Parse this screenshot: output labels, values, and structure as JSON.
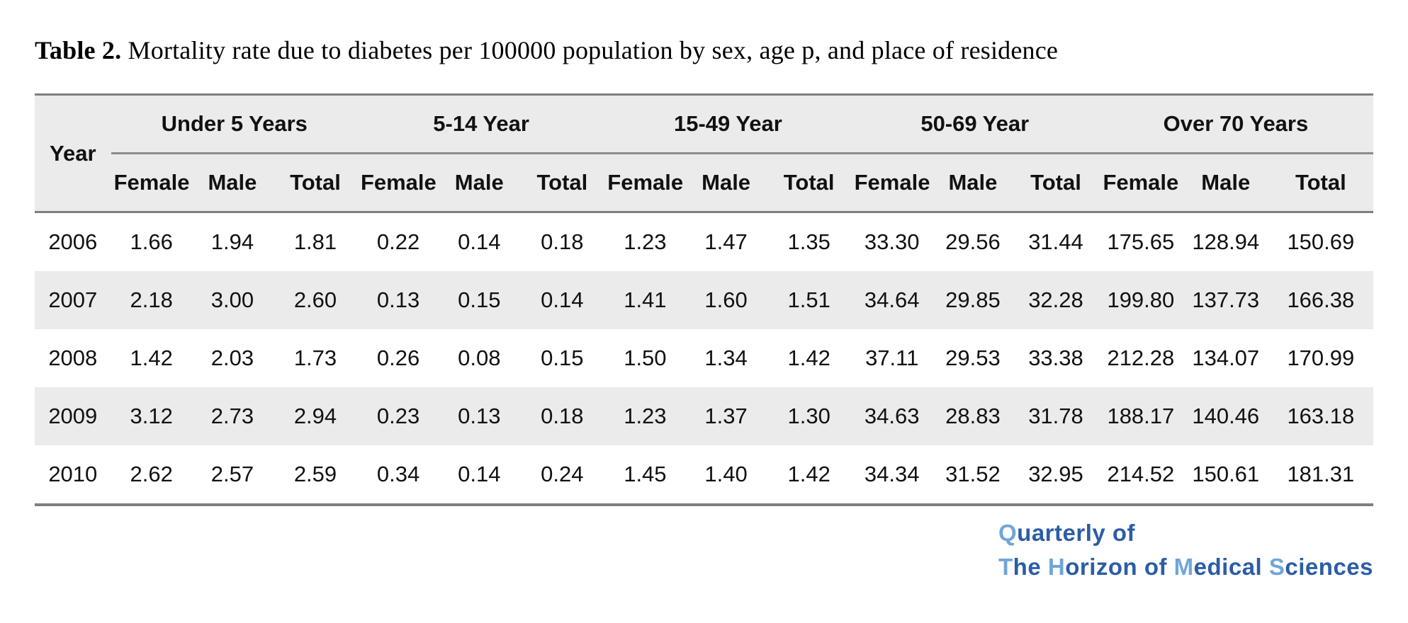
{
  "title": {
    "label": "Table 2.",
    "text": " Mortality rate due to diabetes per 100000 population by sex, age p, and place of residence"
  },
  "table": {
    "year_header": "Year",
    "age_groups": [
      "Under 5 Years",
      "5-14 Year",
      "15-49 Year",
      "50-69 Year",
      "Over 70 Years"
    ],
    "sub_headers": [
      "Female",
      "Male",
      "Total"
    ],
    "rows": [
      {
        "year": "2006",
        "values": [
          "1.66",
          "1.94",
          "1.81",
          "0.22",
          "0.14",
          "0.18",
          "1.23",
          "1.47",
          "1.35",
          "33.30",
          "29.56",
          "31.44",
          "175.65",
          "128.94",
          "150.69"
        ]
      },
      {
        "year": "2007",
        "values": [
          "2.18",
          "3.00",
          "2.60",
          "0.13",
          "0.15",
          "0.14",
          "1.41",
          "1.60",
          "1.51",
          "34.64",
          "29.85",
          "32.28",
          "199.80",
          "137.73",
          "166.38"
        ]
      },
      {
        "year": "2008",
        "values": [
          "1.42",
          "2.03",
          "1.73",
          "0.26",
          "0.08",
          "0.15",
          "1.50",
          "1.34",
          "1.42",
          "37.11",
          "29.53",
          "33.38",
          "212.28",
          "134.07",
          "170.99"
        ]
      },
      {
        "year": "2009",
        "values": [
          "3.12",
          "2.73",
          "2.94",
          "0.23",
          "0.13",
          "0.18",
          "1.23",
          "1.37",
          "1.30",
          "34.63",
          "28.83",
          "31.78",
          "188.17",
          "140.46",
          "163.18"
        ]
      },
      {
        "year": "2010",
        "values": [
          "2.62",
          "2.57",
          "2.59",
          "0.34",
          "0.14",
          "0.24",
          "1.45",
          "1.40",
          "1.42",
          "34.34",
          "31.52",
          "32.95",
          "214.52",
          "150.61",
          "181.31"
        ]
      }
    ]
  },
  "journal_logo": {
    "line1": [
      {
        "text": "Q",
        "tone": "light"
      },
      {
        "text": "uarterly of",
        "tone": "dark"
      }
    ],
    "line2": [
      {
        "text": "T",
        "tone": "light"
      },
      {
        "text": "he ",
        "tone": "dark"
      },
      {
        "text": "H",
        "tone": "light"
      },
      {
        "text": "orizon of ",
        "tone": "dark"
      },
      {
        "text": "M",
        "tone": "light"
      },
      {
        "text": "edical ",
        "tone": "dark"
      },
      {
        "text": "S",
        "tone": "light"
      },
      {
        "text": "ciences",
        "tone": "dark"
      }
    ]
  },
  "colors": {
    "header_bg": "#ebebeb",
    "alt_row_bg": "#ebebeb",
    "border_gray": "#7f7f7f",
    "logo_light_blue": "#6fa6da",
    "logo_dark_blue": "#2c5da6"
  },
  "chart_data": {
    "type": "table",
    "title": "Table 2. Mortality rate due to diabetes per 100000 population by sex, age p, and place of residence",
    "row_header": "Year",
    "column_groups": [
      "Under 5 Years",
      "5-14 Year",
      "15-49 Year",
      "50-69 Year",
      "Over 70 Years"
    ],
    "columns_per_group": [
      "Female",
      "Male",
      "Total"
    ],
    "years": [
      2006,
      2007,
      2008,
      2009,
      2010
    ],
    "values": [
      [
        1.66,
        1.94,
        1.81,
        0.22,
        0.14,
        0.18,
        1.23,
        1.47,
        1.35,
        33.3,
        29.56,
        31.44,
        175.65,
        128.94,
        150.69
      ],
      [
        2.18,
        3.0,
        2.6,
        0.13,
        0.15,
        0.14,
        1.41,
        1.6,
        1.51,
        34.64,
        29.85,
        32.28,
        199.8,
        137.73,
        166.38
      ],
      [
        1.42,
        2.03,
        1.73,
        0.26,
        0.08,
        0.15,
        1.5,
        1.34,
        1.42,
        37.11,
        29.53,
        33.38,
        212.28,
        134.07,
        170.99
      ],
      [
        3.12,
        2.73,
        2.94,
        0.23,
        0.13,
        0.18,
        1.23,
        1.37,
        1.3,
        34.63,
        28.83,
        31.78,
        188.17,
        140.46,
        163.18
      ],
      [
        2.62,
        2.57,
        2.59,
        0.34,
        0.14,
        0.24,
        1.45,
        1.4,
        1.42,
        34.34,
        31.52,
        32.95,
        214.52,
        150.61,
        181.31
      ]
    ]
  }
}
